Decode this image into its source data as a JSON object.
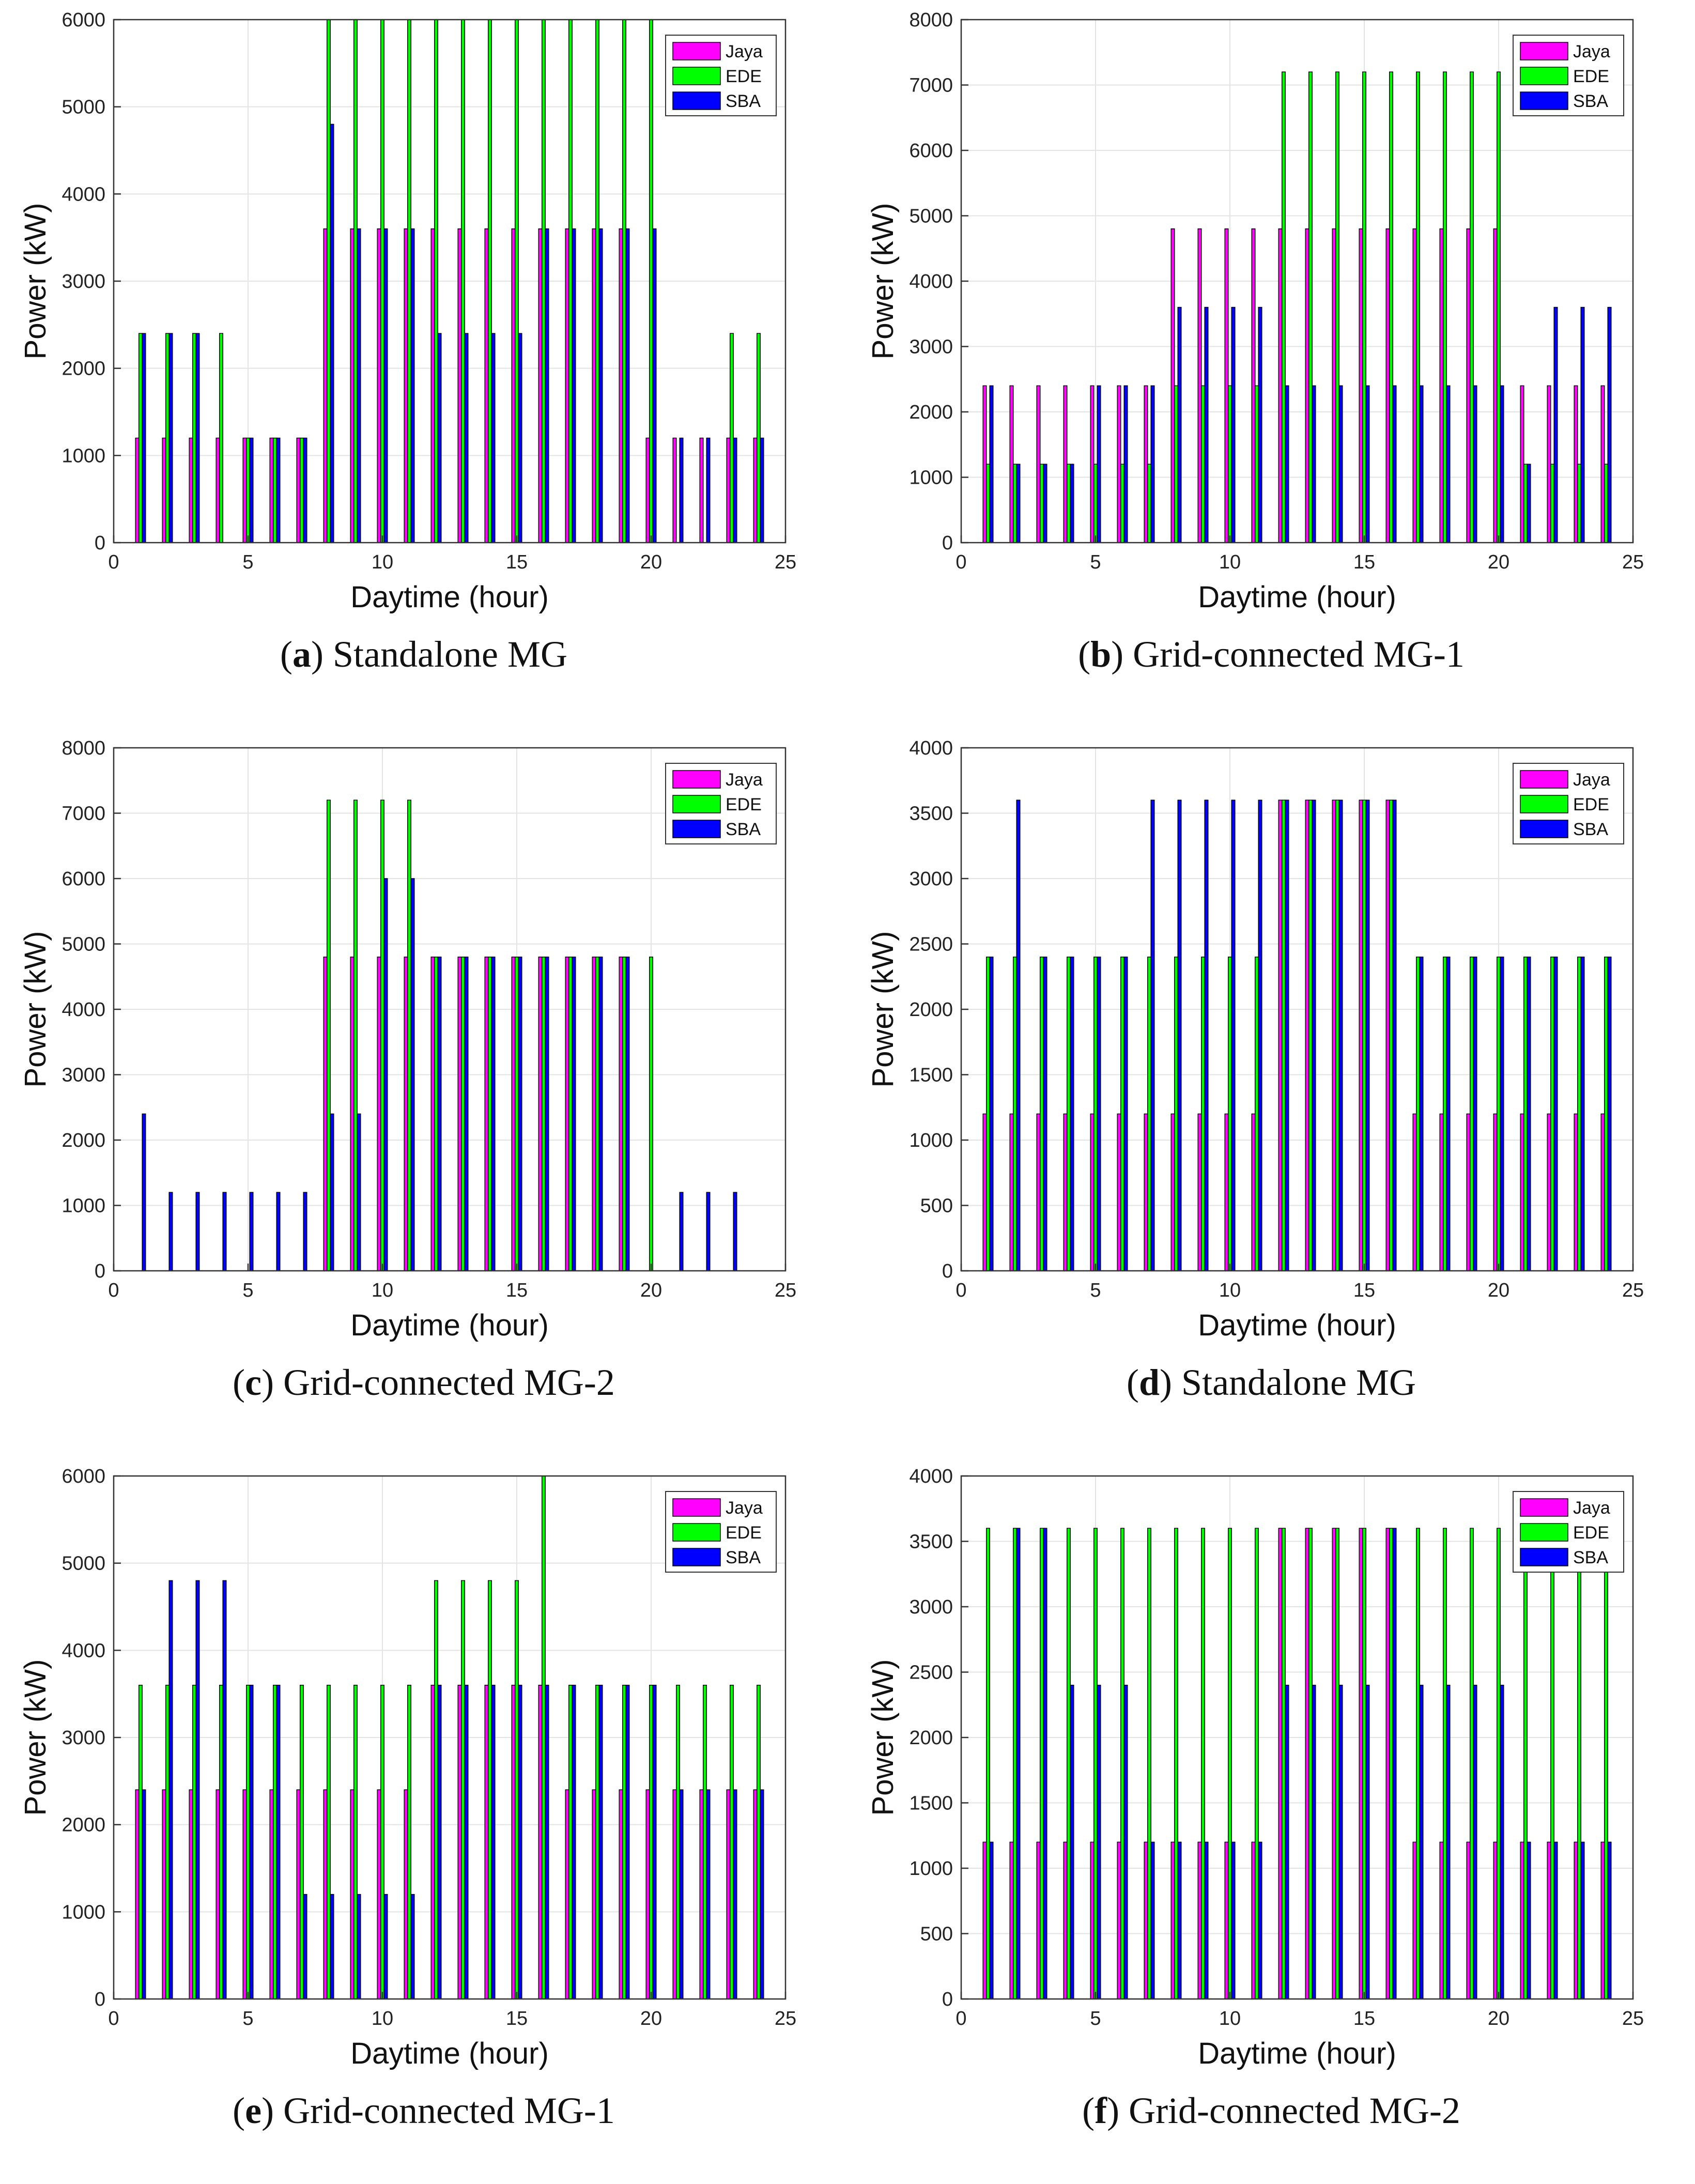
{
  "colors": {
    "jaya": "#ff00ff",
    "ede": "#00ff00",
    "sba": "#0000ff",
    "grid": "#e3e3e3",
    "axis": "#333333"
  },
  "chart_data": [
    {
      "type": "bar",
      "panel_letter": "a",
      "title": "Standalone MG",
      "xlabel": "Daytime (hour)",
      "ylabel": "Power (kW)",
      "xlim": [
        0,
        25
      ],
      "ylim": [
        0,
        6000
      ],
      "xticks": [
        0,
        5,
        10,
        15,
        20,
        25
      ],
      "yticks": [
        0,
        1000,
        2000,
        3000,
        4000,
        5000,
        6000
      ],
      "legend": [
        "Jaya",
        "EDE",
        "SBA"
      ],
      "categories": [
        1,
        2,
        3,
        4,
        5,
        6,
        7,
        8,
        9,
        10,
        11,
        12,
        13,
        14,
        15,
        16,
        17,
        18,
        19,
        20,
        21,
        22,
        23,
        24
      ],
      "series": [
        {
          "name": "Jaya",
          "values": [
            1200,
            1200,
            1200,
            1200,
            1200,
            1200,
            1200,
            3600,
            3600,
            3600,
            3600,
            3600,
            3600,
            3600,
            3600,
            3600,
            3600,
            3600,
            3600,
            1200,
            1200,
            1200,
            1200,
            1200
          ]
        },
        {
          "name": "EDE",
          "values": [
            2400,
            2400,
            2400,
            2400,
            1200,
            1200,
            1200,
            6000,
            6000,
            6000,
            6000,
            6000,
            6000,
            6000,
            6000,
            6000,
            6000,
            6000,
            6000,
            6000,
            0,
            0,
            2400,
            2400
          ]
        },
        {
          "name": "SBA",
          "values": [
            2400,
            2400,
            2400,
            0,
            1200,
            1200,
            1200,
            4800,
            3600,
            3600,
            3600,
            2400,
            2400,
            2400,
            2400,
            3600,
            3600,
            3600,
            3600,
            3600,
            1200,
            1200,
            1200,
            1200
          ]
        }
      ]
    },
    {
      "type": "bar",
      "panel_letter": "b",
      "title": "Grid-connected MG-1",
      "xlabel": "Daytime (hour)",
      "ylabel": "Power (kW)",
      "xlim": [
        0,
        25
      ],
      "ylim": [
        0,
        8000
      ],
      "xticks": [
        0,
        5,
        10,
        15,
        20,
        25
      ],
      "yticks": [
        0,
        1000,
        2000,
        3000,
        4000,
        5000,
        6000,
        7000,
        8000
      ],
      "legend": [
        "Jaya",
        "EDE",
        "SBA"
      ],
      "categories": [
        1,
        2,
        3,
        4,
        5,
        6,
        7,
        8,
        9,
        10,
        11,
        12,
        13,
        14,
        15,
        16,
        17,
        18,
        19,
        20,
        21,
        22,
        23,
        24
      ],
      "series": [
        {
          "name": "Jaya",
          "values": [
            2400,
            2400,
            2400,
            2400,
            2400,
            2400,
            2400,
            4800,
            4800,
            4800,
            4800,
            4800,
            4800,
            4800,
            4800,
            4800,
            4800,
            4800,
            4800,
            4800,
            2400,
            2400,
            2400,
            2400
          ]
        },
        {
          "name": "EDE",
          "values": [
            1200,
            1200,
            1200,
            1200,
            1200,
            1200,
            1200,
            2400,
            2400,
            2400,
            2400,
            7200,
            7200,
            7200,
            7200,
            7200,
            7200,
            7200,
            7200,
            7200,
            1200,
            1200,
            1200,
            1200
          ]
        },
        {
          "name": "SBA",
          "values": [
            2400,
            1200,
            1200,
            1200,
            2400,
            2400,
            2400,
            3600,
            3600,
            3600,
            3600,
            2400,
            2400,
            2400,
            2400,
            2400,
            2400,
            2400,
            2400,
            2400,
            1200,
            3600,
            3600,
            3600
          ]
        }
      ]
    },
    {
      "type": "bar",
      "panel_letter": "c",
      "title": "Grid-connected MG-2",
      "xlabel": "Daytime (hour)",
      "ylabel": "Power (kW)",
      "xlim": [
        0,
        25
      ],
      "ylim": [
        0,
        8000
      ],
      "xticks": [
        0,
        5,
        10,
        15,
        20,
        25
      ],
      "yticks": [
        0,
        1000,
        2000,
        3000,
        4000,
        5000,
        6000,
        7000,
        8000
      ],
      "legend": [
        "Jaya",
        "EDE",
        "SBA"
      ],
      "categories": [
        1,
        2,
        3,
        4,
        5,
        6,
        7,
        8,
        9,
        10,
        11,
        12,
        13,
        14,
        15,
        16,
        17,
        18,
        19,
        20,
        21,
        22,
        23,
        24
      ],
      "series": [
        {
          "name": "Jaya",
          "values": [
            0,
            0,
            0,
            0,
            0,
            0,
            0,
            4800,
            4800,
            4800,
            4800,
            4800,
            4800,
            4800,
            4800,
            4800,
            4800,
            4800,
            4800,
            0,
            0,
            0,
            0,
            0
          ]
        },
        {
          "name": "EDE",
          "values": [
            0,
            0,
            0,
            0,
            0,
            0,
            0,
            7200,
            7200,
            7200,
            7200,
            4800,
            4800,
            4800,
            4800,
            4800,
            4800,
            4800,
            4800,
            4800,
            0,
            0,
            0,
            0
          ]
        },
        {
          "name": "SBA",
          "values": [
            2400,
            1200,
            1200,
            1200,
            1200,
            1200,
            1200,
            2400,
            2400,
            6000,
            6000,
            4800,
            4800,
            4800,
            4800,
            4800,
            4800,
            4800,
            4800,
            0,
            1200,
            1200,
            1200,
            0
          ]
        }
      ]
    },
    {
      "type": "bar",
      "panel_letter": "d",
      "title": "Standalone MG",
      "xlabel": "Daytime (hour)",
      "ylabel": "Power (kW)",
      "xlim": [
        0,
        25
      ],
      "ylim": [
        0,
        4000
      ],
      "xticks": [
        0,
        5,
        10,
        15,
        20,
        25
      ],
      "yticks": [
        0,
        500,
        1000,
        1500,
        2000,
        2500,
        3000,
        3500,
        4000
      ],
      "legend": [
        "Jaya",
        "EDE",
        "SBA"
      ],
      "categories": [
        1,
        2,
        3,
        4,
        5,
        6,
        7,
        8,
        9,
        10,
        11,
        12,
        13,
        14,
        15,
        16,
        17,
        18,
        19,
        20,
        21,
        22,
        23,
        24
      ],
      "series": [
        {
          "name": "Jaya",
          "values": [
            1200,
            1200,
            1200,
            1200,
            1200,
            1200,
            1200,
            1200,
            1200,
            1200,
            1200,
            3600,
            3600,
            3600,
            3600,
            3600,
            1200,
            1200,
            1200,
            1200,
            1200,
            1200,
            1200,
            1200
          ]
        },
        {
          "name": "EDE",
          "values": [
            2400,
            2400,
            2400,
            2400,
            2400,
            2400,
            2400,
            2400,
            2400,
            2400,
            2400,
            3600,
            3600,
            3600,
            3600,
            3600,
            2400,
            2400,
            2400,
            2400,
            2400,
            2400,
            2400,
            2400
          ]
        },
        {
          "name": "SBA",
          "values": [
            2400,
            3600,
            2400,
            2400,
            2400,
            2400,
            3600,
            3600,
            3600,
            3600,
            3600,
            3600,
            3600,
            3600,
            3600,
            3600,
            2400,
            2400,
            2400,
            2400,
            2400,
            2400,
            2400,
            2400
          ]
        }
      ]
    },
    {
      "type": "bar",
      "panel_letter": "e",
      "title": "Grid-connected MG-1",
      "xlabel": "Daytime (hour)",
      "ylabel": "Power (kW)",
      "xlim": [
        0,
        25
      ],
      "ylim": [
        0,
        6000
      ],
      "xticks": [
        0,
        5,
        10,
        15,
        20,
        25
      ],
      "yticks": [
        0,
        1000,
        2000,
        3000,
        4000,
        5000,
        6000
      ],
      "legend": [
        "Jaya",
        "EDE",
        "SBA"
      ],
      "categories": [
        1,
        2,
        3,
        4,
        5,
        6,
        7,
        8,
        9,
        10,
        11,
        12,
        13,
        14,
        15,
        16,
        17,
        18,
        19,
        20,
        21,
        22,
        23,
        24
      ],
      "series": [
        {
          "name": "Jaya",
          "values": [
            2400,
            2400,
            2400,
            2400,
            2400,
            2400,
            2400,
            2400,
            2400,
            2400,
            2400,
            3600,
            3600,
            3600,
            3600,
            3600,
            2400,
            2400,
            2400,
            2400,
            2400,
            2400,
            2400,
            2400
          ]
        },
        {
          "name": "EDE",
          "values": [
            3600,
            3600,
            3600,
            3600,
            3600,
            3600,
            3600,
            3600,
            3600,
            3600,
            3600,
            4800,
            4800,
            4800,
            4800,
            6000,
            3600,
            3600,
            3600,
            3600,
            3600,
            3600,
            3600,
            3600
          ]
        },
        {
          "name": "SBA",
          "values": [
            2400,
            4800,
            4800,
            4800,
            3600,
            3600,
            1200,
            1200,
            1200,
            1200,
            1200,
            3600,
            3600,
            3600,
            3600,
            3600,
            3600,
            3600,
            3600,
            3600,
            2400,
            2400,
            2400,
            2400
          ]
        }
      ]
    },
    {
      "type": "bar",
      "panel_letter": "f",
      "title": "Grid-connected MG-2",
      "xlabel": "Daytime (hour)",
      "ylabel": "Power (kW)",
      "xlim": [
        0,
        25
      ],
      "ylim": [
        0,
        4000
      ],
      "xticks": [
        0,
        5,
        10,
        15,
        20,
        25
      ],
      "yticks": [
        0,
        500,
        1000,
        1500,
        2000,
        2500,
        3000,
        3500,
        4000
      ],
      "legend": [
        "Jaya",
        "EDE",
        "SBA"
      ],
      "categories": [
        1,
        2,
        3,
        4,
        5,
        6,
        7,
        8,
        9,
        10,
        11,
        12,
        13,
        14,
        15,
        16,
        17,
        18,
        19,
        20,
        21,
        22,
        23,
        24
      ],
      "series": [
        {
          "name": "Jaya",
          "values": [
            1200,
            1200,
            1200,
            1200,
            1200,
            1200,
            1200,
            1200,
            1200,
            1200,
            1200,
            3600,
            3600,
            3600,
            3600,
            3600,
            1200,
            1200,
            1200,
            1200,
            1200,
            1200,
            1200,
            1200
          ]
        },
        {
          "name": "EDE",
          "values": [
            3600,
            3600,
            3600,
            3600,
            3600,
            3600,
            3600,
            3600,
            3600,
            3600,
            3600,
            3600,
            3600,
            3600,
            3600,
            3600,
            3600,
            3600,
            3600,
            3600,
            3600,
            3600,
            3600,
            3600
          ]
        },
        {
          "name": "SBA",
          "values": [
            1200,
            3600,
            3600,
            2400,
            2400,
            2400,
            1200,
            1200,
            1200,
            1200,
            1200,
            2400,
            2400,
            2400,
            2400,
            3600,
            2400,
            2400,
            2400,
            2400,
            1200,
            1200,
            1200,
            1200
          ]
        }
      ]
    }
  ]
}
